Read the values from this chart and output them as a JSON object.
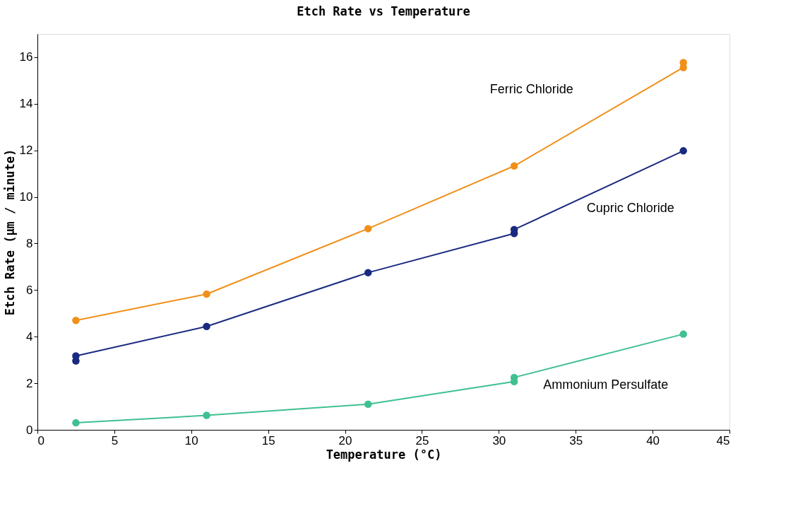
{
  "chart_data": {
    "type": "line",
    "title": "Etch Rate vs Temperature",
    "xlabel": "Temperature (°C)",
    "ylabel": "Etch Rate (µm / minute)",
    "xlim": [
      0,
      45
    ],
    "xticks": [
      0,
      5,
      10,
      15,
      20,
      25,
      30,
      35,
      40,
      45
    ],
    "ylim": [
      0,
      17
    ],
    "yticks": [
      0,
      2,
      4,
      6,
      8,
      10,
      12,
      14,
      16
    ],
    "grid": false,
    "marker": "circle",
    "line_style": "solid",
    "series": [
      {
        "name": "Ferric Chloride",
        "color": "#f0901a",
        "x": [
          2.5,
          11,
          21.5,
          31,
          42,
          42
        ],
        "values": [
          4.7,
          5.83,
          8.64,
          11.33,
          15.56,
          15.77
        ]
      },
      {
        "name": "Cupric Chloride",
        "color": "#1a2a80",
        "x": [
          2.5,
          2.5,
          11,
          21.5,
          31,
          31,
          42
        ],
        "values": [
          2.96,
          3.17,
          4.44,
          6.75,
          8.43,
          8.6,
          11.98
        ]
      },
      {
        "name": "Ammonium Persulfate",
        "color": "#40c090",
        "x": [
          2.5,
          11,
          21.5,
          31,
          31,
          42
        ],
        "values": [
          0.3,
          0.62,
          1.1,
          2.07,
          2.25,
          4.11
        ]
      }
    ]
  }
}
